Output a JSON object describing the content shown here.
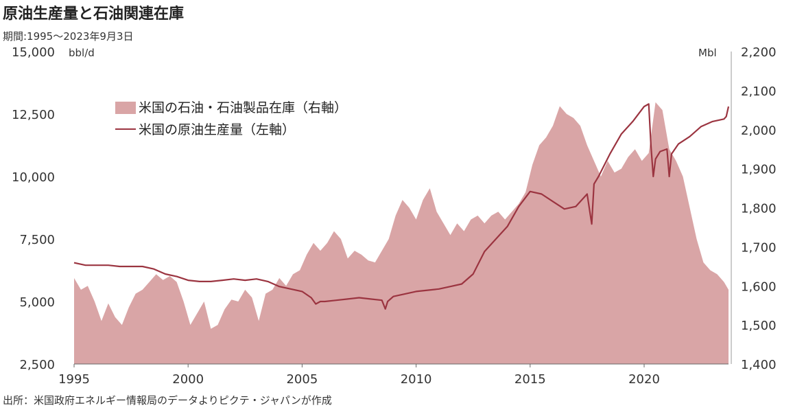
{
  "title": "原油生産量と石油関連在庫",
  "period": "期間:1995～2023年9月3日",
  "source": "出所：米国政府エネルギー情報局のデータよりピクテ・ジャパンが作成",
  "colors": {
    "inventory": "#d9a5a6",
    "production": "#9b3440"
  },
  "chart_data": {
    "type": "area",
    "left_unit": "bbl/d",
    "right_unit": "Mbl",
    "grid": false,
    "x_range": [
      1995,
      2023.7
    ],
    "left_ylim": [
      2500,
      15000
    ],
    "right_ylim": [
      1400,
      2200
    ],
    "x_ticks": [
      "1995",
      "2000",
      "2005",
      "2010",
      "2015",
      "2020"
    ],
    "left_ticks": [
      "15,000",
      "12,500",
      "10,000",
      "7,500",
      "5,000",
      "2,500"
    ],
    "right_ticks": [
      "2,200",
      "2,100",
      "2,000",
      "1,900",
      "1,800",
      "1,700",
      "1,600",
      "1,500",
      "1,400"
    ],
    "series": [
      {
        "name": "米国の石油・石油製品在庫（右軸）",
        "axis": "right",
        "kind": "area",
        "x": [
          1995.0,
          1995.3,
          1995.6,
          1995.9,
          1996.2,
          1996.5,
          1996.8,
          1997.1,
          1997.4,
          1997.7,
          1998.0,
          1998.3,
          1998.6,
          1998.9,
          1999.2,
          1999.5,
          1999.8,
          2000.1,
          2000.4,
          2000.7,
          2001.0,
          2001.3,
          2001.6,
          2001.9,
          2002.2,
          2002.5,
          2002.8,
          2003.1,
          2003.4,
          2003.7,
          2004.0,
          2004.3,
          2004.6,
          2004.9,
          2005.2,
          2005.5,
          2005.8,
          2006.1,
          2006.4,
          2006.7,
          2007.0,
          2007.3,
          2007.6,
          2007.9,
          2008.2,
          2008.5,
          2008.8,
          2009.1,
          2009.4,
          2009.7,
          2010.0,
          2010.3,
          2010.6,
          2010.9,
          2011.2,
          2011.5,
          2011.8,
          2012.1,
          2012.4,
          2012.7,
          2013.0,
          2013.3,
          2013.6,
          2013.9,
          2014.2,
          2014.5,
          2014.8,
          2015.1,
          2015.4,
          2015.7,
          2016.0,
          2016.3,
          2016.6,
          2016.9,
          2017.2,
          2017.5,
          2017.8,
          2018.1,
          2018.4,
          2018.7,
          2019.0,
          2019.3,
          2019.6,
          2019.9,
          2020.2,
          2020.5,
          2020.8,
          2021.1,
          2021.4,
          2021.7,
          2022.0,
          2022.3,
          2022.6,
          2022.9,
          2023.2,
          2023.5,
          2023.7
        ],
        "values": [
          1620,
          1590,
          1600,
          1560,
          1510,
          1555,
          1520,
          1500,
          1545,
          1580,
          1590,
          1610,
          1630,
          1615,
          1625,
          1610,
          1560,
          1500,
          1530,
          1560,
          1490,
          1500,
          1540,
          1565,
          1560,
          1590,
          1570,
          1510,
          1580,
          1590,
          1620,
          1600,
          1630,
          1640,
          1680,
          1710,
          1690,
          1710,
          1740,
          1720,
          1670,
          1690,
          1680,
          1665,
          1660,
          1690,
          1720,
          1780,
          1820,
          1800,
          1770,
          1820,
          1850,
          1790,
          1760,
          1730,
          1760,
          1740,
          1770,
          1780,
          1760,
          1780,
          1790,
          1770,
          1790,
          1810,
          1840,
          1910,
          1960,
          1980,
          2010,
          2060,
          2040,
          2030,
          2010,
          1960,
          1920,
          1880,
          1920,
          1890,
          1900,
          1930,
          1950,
          1920,
          1940,
          2070,
          2050,
          1950,
          1920,
          1880,
          1800,
          1720,
          1660,
          1640,
          1630,
          1610,
          1590
        ]
      },
      {
        "name": "米国の原油生産量（左軸）",
        "axis": "left",
        "kind": "line",
        "x": [
          1995.0,
          1995.5,
          1996.0,
          1996.5,
          1997.0,
          1997.5,
          1998.0,
          1998.5,
          1999.0,
          1999.5,
          2000.0,
          2000.5,
          2001.0,
          2001.5,
          2002.0,
          2002.5,
          2003.0,
          2003.5,
          2004.0,
          2004.5,
          2005.0,
          2005.4,
          2005.6,
          2005.8,
          2006.0,
          2006.5,
          2007.0,
          2007.5,
          2008.0,
          2008.5,
          2008.65,
          2008.75,
          2009.0,
          2009.5,
          2010.0,
          2010.5,
          2011.0,
          2011.5,
          2012.0,
          2012.5,
          2013.0,
          2013.5,
          2014.0,
          2014.5,
          2015.0,
          2015.5,
          2016.0,
          2016.5,
          2017.0,
          2017.5,
          2017.7,
          2017.8,
          2018.0,
          2018.5,
          2019.0,
          2019.5,
          2020.0,
          2020.2,
          2020.3,
          2020.4,
          2020.5,
          2020.7,
          2021.0,
          2021.1,
          2021.2,
          2021.5,
          2022.0,
          2022.5,
          2023.0,
          2023.5,
          2023.6,
          2023.7
        ],
        "values": [
          6550,
          6450,
          6450,
          6450,
          6400,
          6400,
          6400,
          6300,
          6100,
          6000,
          5850,
          5800,
          5800,
          5850,
          5900,
          5850,
          5900,
          5800,
          5600,
          5500,
          5400,
          5150,
          4900,
          5000,
          5000,
          5050,
          5100,
          5150,
          5100,
          5050,
          4700,
          5000,
          5200,
          5300,
          5400,
          5450,
          5500,
          5600,
          5700,
          6100,
          7000,
          7500,
          8000,
          8800,
          9400,
          9300,
          9000,
          8700,
          8800,
          9300,
          8100,
          9700,
          10000,
          10900,
          11700,
          12200,
          12800,
          12900,
          11200,
          10000,
          10700,
          11000,
          11100,
          10000,
          10900,
          11300,
          11600,
          12000,
          12200,
          12300,
          12400,
          12800
        ]
      }
    ]
  }
}
